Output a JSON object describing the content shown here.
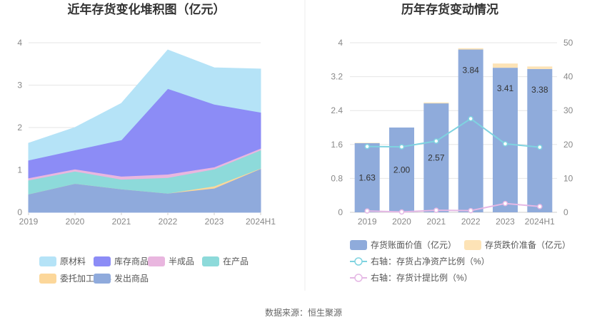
{
  "source_text": "数据来源：恒生聚源",
  "chart_data": [
    {
      "type": "area",
      "stacked": true,
      "title": "近年存货变化堆积图（亿元）",
      "categories": [
        "2019",
        "2020",
        "2021",
        "2022",
        "2023",
        "2024H1"
      ],
      "ylim": [
        0,
        4
      ],
      "yticks": [
        "0",
        "1",
        "2",
        "3",
        "4"
      ],
      "grid": true,
      "legend_position": "bottom",
      "series": [
        {
          "name": "发出商品",
          "color": "#8faadc",
          "values": [
            0.43,
            0.68,
            0.55,
            0.45,
            0.57,
            1.03
          ]
        },
        {
          "name": "委托加工材料",
          "color": "#fcd79a",
          "values": [
            0.0,
            0.0,
            0.0,
            0.0,
            0.05,
            0.01
          ]
        },
        {
          "name": "在产品",
          "color": "#8ddada",
          "values": [
            0.33,
            0.29,
            0.23,
            0.37,
            0.4,
            0.43
          ]
        },
        {
          "name": "半成品",
          "color": "#e9b6df",
          "values": [
            0.05,
            0.05,
            0.07,
            0.08,
            0.05,
            0.04
          ]
        },
        {
          "name": "库存商品",
          "color": "#8c8cf6",
          "values": [
            0.42,
            0.45,
            0.86,
            2.02,
            1.48,
            0.85
          ]
        },
        {
          "name": "原材料",
          "color": "#b5e3f7",
          "values": [
            0.4,
            0.53,
            0.86,
            0.91,
            0.86,
            1.02
          ]
        }
      ]
    },
    {
      "type": "bar",
      "title": "历年存货变动情况",
      "categories": [
        "2019",
        "2020",
        "2021",
        "2022",
        "2023",
        "2024H1"
      ],
      "ylim": [
        0,
        4
      ],
      "yticks": [
        "0",
        "0.8",
        "1.6",
        "2.4",
        "3.2",
        "4"
      ],
      "y2lim": [
        0,
        50
      ],
      "y2ticks": [
        "0",
        "10",
        "20",
        "30",
        "40",
        "50"
      ],
      "grid": true,
      "legend_position": "bottom",
      "bars": [
        {
          "name": "存货账面价值（亿元）",
          "color": "#8fabdb",
          "values": [
            1.63,
            2.0,
            2.57,
            3.84,
            3.41,
            3.38
          ],
          "labels": [
            "1.63",
            "2.00",
            "2.57",
            "3.84",
            "3.41",
            "3.38"
          ]
        },
        {
          "name": "存货跌价准备（亿元）",
          "color": "#fde3b6",
          "values": [
            0.01,
            0.0,
            0.02,
            0.03,
            0.1,
            0.06
          ]
        }
      ],
      "lines": [
        {
          "name": "右轴：存货占净资产比例（%）",
          "color": "#7fd3e0",
          "axis": "right",
          "values": [
            19.4,
            19.3,
            21.0,
            27.6,
            20.2,
            19.2
          ]
        },
        {
          "name": "右轴：存货计提比例（%）",
          "color": "#e5b8e5",
          "axis": "right",
          "values": [
            0.4,
            0.1,
            0.6,
            0.5,
            2.6,
            1.7
          ]
        }
      ]
    }
  ]
}
